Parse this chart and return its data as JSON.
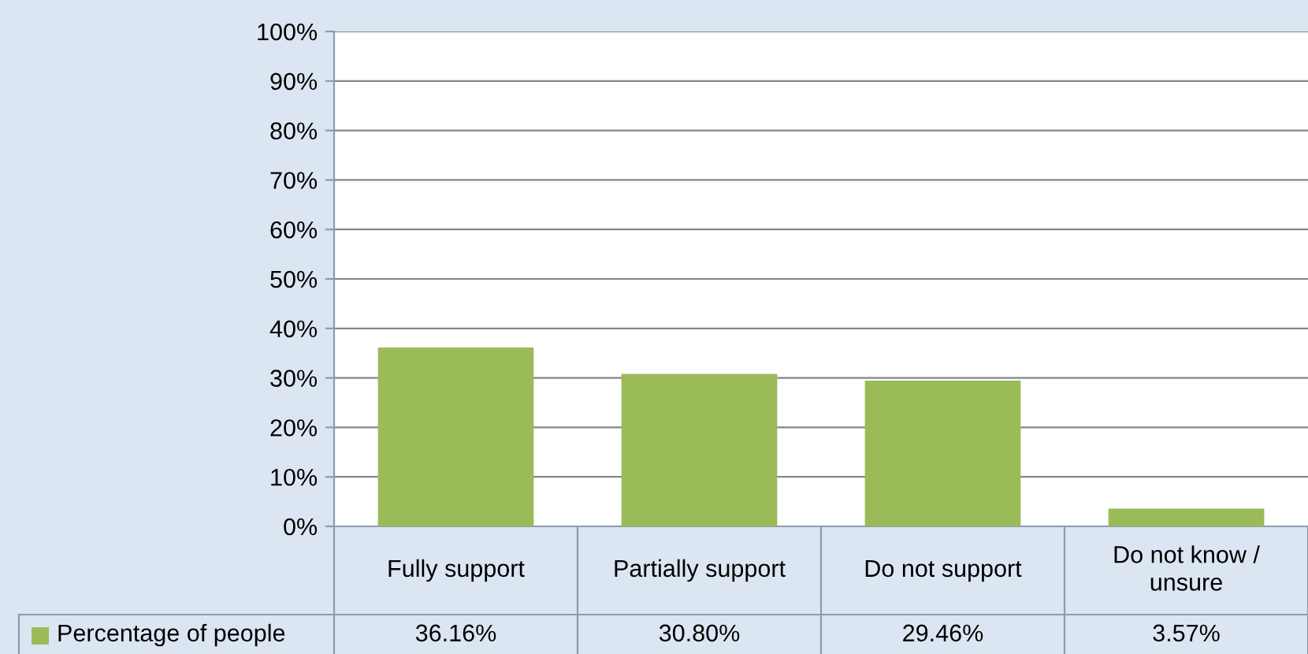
{
  "chart_data": {
    "type": "bar",
    "categories": [
      "Fully support",
      "Partially support",
      "Do not support",
      "Do not know /\nunsure"
    ],
    "series": [
      {
        "name": "Percentage of people",
        "color": "#9bbb59",
        "values": [
          36.16,
          30.8,
          29.46,
          3.57
        ],
        "value_labels": [
          "36.16%",
          "30.80%",
          "29.46%",
          "3.57%"
        ]
      }
    ],
    "ylim": [
      0,
      100
    ],
    "yticks": [
      {
        "value": 0,
        "label": "0%"
      },
      {
        "value": 10,
        "label": "10%"
      },
      {
        "value": 20,
        "label": "20%"
      },
      {
        "value": 30,
        "label": "30%"
      },
      {
        "value": 40,
        "label": "40%"
      },
      {
        "value": 50,
        "label": "50%"
      },
      {
        "value": 60,
        "label": "60%"
      },
      {
        "value": 70,
        "label": "70%"
      },
      {
        "value": 80,
        "label": "80%"
      },
      {
        "value": 90,
        "label": "90%"
      },
      {
        "value": 100,
        "label": "100%"
      }
    ],
    "grid": "y",
    "legend": "bottom"
  }
}
